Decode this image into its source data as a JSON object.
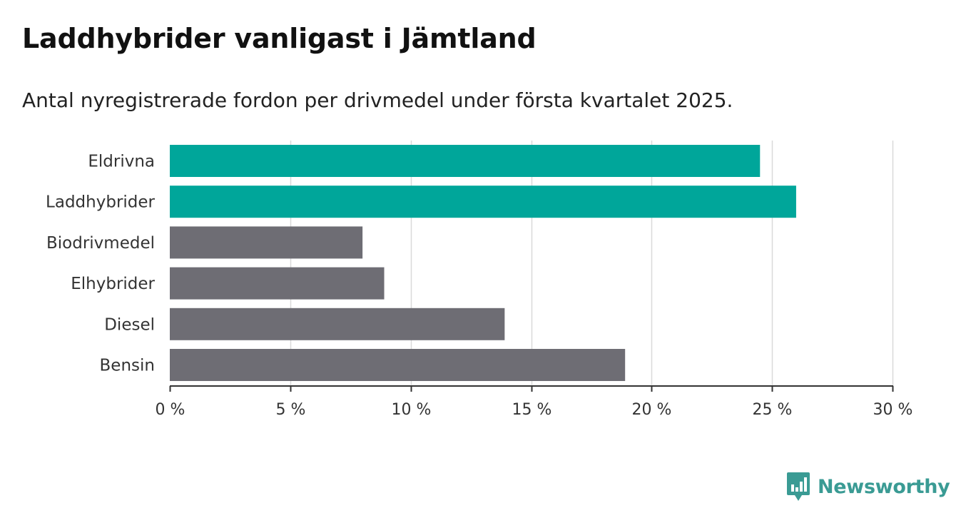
{
  "header": {
    "title": "Laddhybrider vanligast i Jämtland",
    "subtitle": "Antal nyregistrerade fordon per drivmedel under första kvartalet 2025."
  },
  "brand": {
    "name": "Newsworthy",
    "icon": "newsworthy-logo-icon"
  },
  "colors": {
    "highlight": "#00a69a",
    "default": "#6e6d74",
    "grid": "#d9d9d9",
    "axis": "#333333",
    "brand": "#3a9b94"
  },
  "chart_data": {
    "type": "bar",
    "orientation": "horizontal",
    "categories": [
      "Eldrivna",
      "Laddhybrider",
      "Biodrivmedel",
      "Elhybrider",
      "Diesel",
      "Bensin"
    ],
    "values": [
      24.5,
      26.0,
      8.0,
      8.9,
      13.9,
      18.9
    ],
    "highlighted": [
      true,
      true,
      false,
      false,
      false,
      false
    ],
    "xlim": [
      0,
      30
    ],
    "xticks": [
      0,
      5,
      10,
      15,
      20,
      25,
      30
    ],
    "xtick_labels": [
      "0 %",
      "5 %",
      "10 %",
      "15 %",
      "20 %",
      "25 %",
      "30 %"
    ],
    "xlabel": "",
    "ylabel": "",
    "grid": true,
    "legend": "none"
  }
}
